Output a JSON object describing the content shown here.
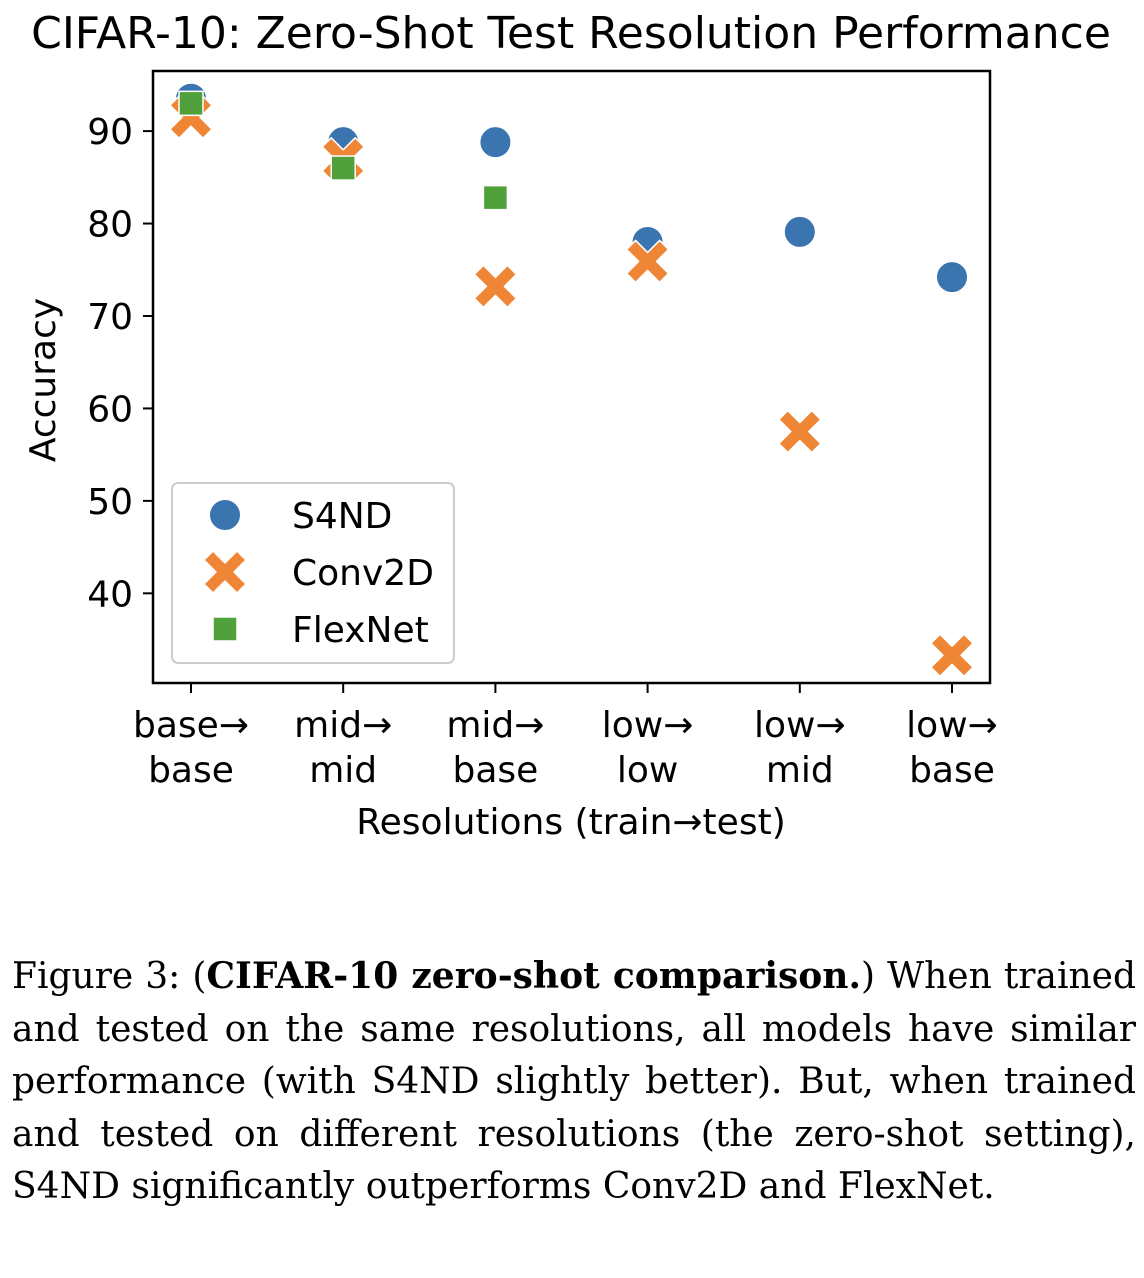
{
  "chart_data": {
    "type": "scatter",
    "title": "CIFAR-10: Zero-Shot Test Resolution Performance",
    "xlabel": "Resolutions (train→test)",
    "ylabel": "Accuracy",
    "categories": [
      [
        "base→",
        "base"
      ],
      [
        "mid→",
        "mid"
      ],
      [
        "mid→",
        "base"
      ],
      [
        "low→",
        "low"
      ],
      [
        "low→",
        "mid"
      ],
      [
        "low→",
        "base"
      ]
    ],
    "yticks": [
      40,
      50,
      60,
      70,
      80,
      90
    ],
    "ylim": [
      30.3,
      96.5
    ],
    "grid": false,
    "legend_position": "lower-left",
    "series": [
      {
        "name": "S4ND",
        "marker": "circle",
        "color": "#3a75b0",
        "values": [
          93.5,
          88.8,
          88.8,
          78.0,
          79.1,
          74.2
        ]
      },
      {
        "name": "Conv2D",
        "marker": "x",
        "color": "#ef8636",
        "values": [
          91.5,
          87.0,
          73.2,
          75.9,
          57.5,
          33.3
        ]
      },
      {
        "name": "FlexNet",
        "marker": "square",
        "color": "#50a03c",
        "values": [
          93.0,
          86.0,
          82.8,
          null,
          null,
          null
        ]
      }
    ]
  },
  "caption": {
    "prefix": "Figure 3: (",
    "bold": "CIFAR-10 zero-shot comparison.",
    "text": ") When trained and tested on the same resolutions, all models have similar performance (with S4ND slightly better). But, when trained and tested on different resolutions (the zero-shot setting), S4ND significantly outperforms Conv2D and FlexNet."
  }
}
